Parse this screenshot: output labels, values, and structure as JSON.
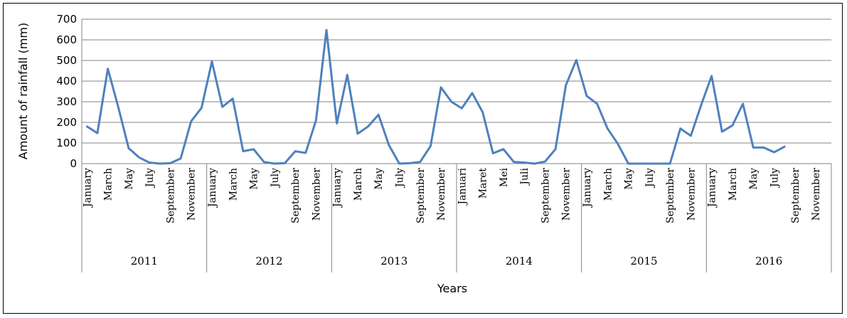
{
  "chart_data": {
    "type": "line",
    "ylabel": "Amount of rainfall (mm)",
    "xlabel": "Years",
    "ylim": [
      0,
      700
    ],
    "yticks": [
      0,
      100,
      200,
      300,
      400,
      500,
      600,
      700
    ],
    "grid": "horizontal",
    "color": "#4F81BD",
    "years": [
      "2011",
      "2012",
      "2013",
      "2014",
      "2015",
      "2016"
    ],
    "month_labels": [
      [
        "January",
        "March",
        "May",
        "July",
        "September",
        "November"
      ],
      [
        "January",
        "March",
        "May",
        "July",
        "September",
        "November"
      ],
      [
        "January",
        "March",
        "May",
        "July",
        "September",
        "November"
      ],
      [
        "Januari",
        "Maret",
        "Mei",
        "Juli",
        "September",
        "November"
      ],
      [
        "January",
        "March",
        "May",
        "July",
        "September",
        "November"
      ],
      [
        "January",
        "March",
        "May",
        "July",
        "September",
        "November"
      ]
    ],
    "series": [
      {
        "values": [
          180,
          148,
          460,
          275,
          75,
          30,
          5,
          0,
          2,
          25,
          205,
          270,
          495,
          275,
          315,
          60,
          70,
          8,
          0,
          2,
          60,
          52,
          210,
          648,
          195,
          430,
          145,
          180,
          237,
          90,
          0,
          2,
          8,
          85,
          370,
          300,
          268,
          342,
          250,
          50,
          70,
          8,
          5,
          0,
          10,
          70,
          380,
          502,
          328,
          290,
          170,
          95,
          0,
          0,
          0,
          0,
          0,
          170,
          135,
          285,
          425,
          155,
          185,
          290,
          78,
          78,
          55,
          82
        ]
      }
    ]
  }
}
